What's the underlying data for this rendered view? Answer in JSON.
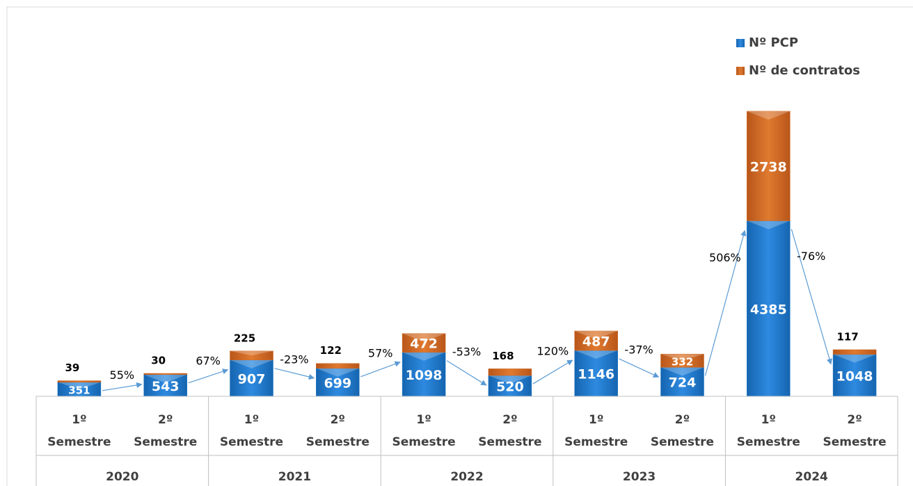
{
  "chart_data": {
    "type": "stacked_bar",
    "categories": [
      "1º Semestre",
      "2º Semestre",
      "1º Semestre",
      "2º Semestre",
      "1º Semestre",
      "2º Semestre",
      "1º Semestre",
      "2º Semestre",
      "1º Semestre",
      "2º Semestre"
    ],
    "groups": [
      "2020",
      "2021",
      "2022",
      "2023",
      "2024"
    ],
    "series": [
      {
        "name": "Nº PCP",
        "color": "#1f7acb",
        "values": [
          351,
          543,
          907,
          699,
          1098,
          520,
          1146,
          724,
          4385,
          1048
        ]
      },
      {
        "name": "Nº de contratos",
        "color": "#d2691e",
        "values": [
          39,
          30,
          225,
          122,
          472,
          168,
          487,
          332,
          2738,
          117
        ]
      }
    ],
    "change_labels": [
      "55%",
      "67%",
      "-23%",
      "57%",
      "-53%",
      "120%",
      "-37%",
      "506%",
      "-76%"
    ],
    "ylim": [
      0,
      7400
    ],
    "legend": "top-right"
  }
}
